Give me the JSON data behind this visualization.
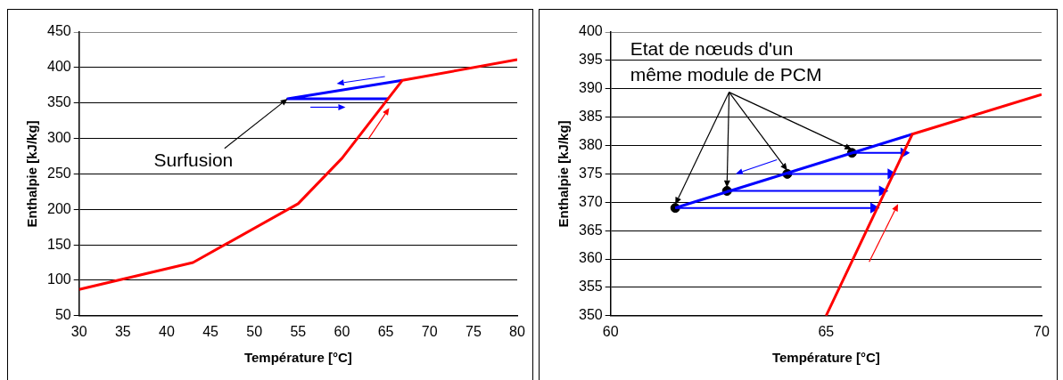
{
  "chart_data": [
    {
      "type": "line",
      "xlabel": "Température [°C]",
      "ylabel": "Enthalpie [kJ/kg]",
      "xlim": [
        30,
        80
      ],
      "xticks": [
        30,
        35,
        40,
        45,
        50,
        55,
        60,
        65,
        70,
        75,
        80
      ],
      "ylim": [
        50,
        450
      ],
      "yticks": [
        50,
        100,
        150,
        200,
        250,
        300,
        350,
        400,
        450
      ],
      "grid": "y",
      "marker": "none",
      "annotations": [
        {
          "text": "Surfusion",
          "x": 53.8,
          "y": 356
        }
      ],
      "series": [
        {
          "color": "#ff0000",
          "x": [
            30,
            43,
            55,
            60,
            66.9,
            80
          ],
          "values": [
            87,
            125,
            208,
            272,
            382,
            411
          ]
        },
        {
          "color": "#0000ff",
          "x": [
            66.9,
            53.8,
            65.3
          ],
          "values": [
            382,
            356,
            356
          ]
        }
      ]
    },
    {
      "type": "line",
      "xlabel": "Température [°C]",
      "ylabel": "Enthalpie [kJ/kg]",
      "xlim": [
        60,
        70
      ],
      "xticks": [
        60,
        65,
        70
      ],
      "ylim": [
        350,
        400
      ],
      "yticks": [
        350,
        355,
        360,
        365,
        370,
        375,
        380,
        385,
        390,
        395,
        400
      ],
      "grid": "y",
      "marker": "none",
      "annotations": [
        "Etat de nœuds d'un\nmême module de PCM"
      ],
      "series": [
        {
          "color": "#ff0000",
          "x": [
            65,
            67,
            70
          ],
          "values": [
            350,
            382,
            389
          ]
        },
        {
          "color": "#0000ff",
          "x": [
            67,
            61.5
          ],
          "values": [
            382,
            369
          ]
        },
        {
          "color": "#0000ff",
          "x": [
            61.5,
            66.1
          ],
          "values": [
            369,
            369
          ],
          "marker": "triangle"
        },
        {
          "color": "#0000ff",
          "x": [
            62.7,
            66.3
          ],
          "values": [
            372,
            372
          ],
          "marker": "triangle"
        },
        {
          "color": "#0000ff",
          "x": [
            64.1,
            66.5
          ],
          "values": [
            375,
            375
          ],
          "marker": "triangle"
        },
        {
          "color": "#0000ff",
          "x": [
            65.6,
            66.8
          ],
          "values": [
            378.7,
            378.7
          ],
          "marker": "triangle"
        },
        {
          "type": "scatter",
          "color": "#000000",
          "x": [
            61.5,
            62.7,
            64.1,
            65.6
          ],
          "values": [
            369,
            372,
            375,
            378.7
          ],
          "marker": "circle"
        }
      ]
    }
  ]
}
